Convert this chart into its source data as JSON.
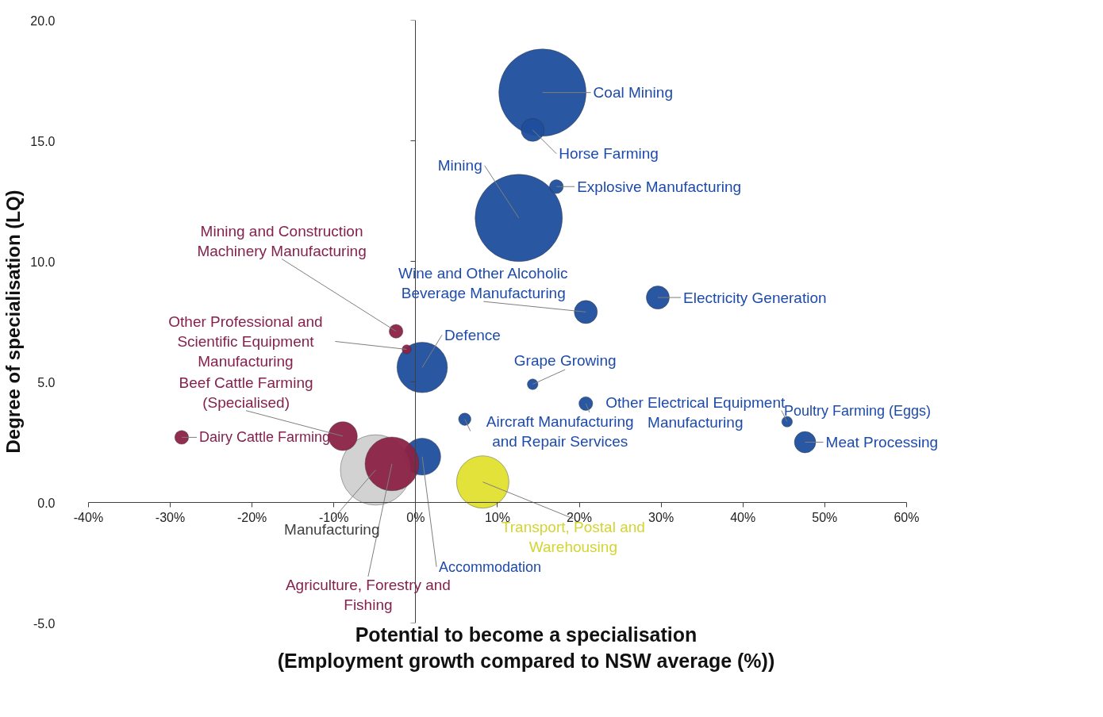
{
  "chart_data": {
    "type": "bubble",
    "xlabel": "Potential to become a specialisation\n(Employment growth compared to NSW average (%))",
    "ylabel": "Degree of specialisation (LQ)",
    "xlim": [
      -40,
      60
    ],
    "xticks": [
      {
        "value": -40,
        "label": "-40%"
      },
      {
        "value": -30,
        "label": "-30%"
      },
      {
        "value": -20,
        "label": "-20%"
      },
      {
        "value": -10,
        "label": "-10%"
      },
      {
        "value": 0,
        "label": "0%"
      },
      {
        "value": 10,
        "label": "10%"
      },
      {
        "value": 20,
        "label": "20%"
      },
      {
        "value": 30,
        "label": "30%"
      },
      {
        "value": 40,
        "label": "40%"
      },
      {
        "value": 50,
        "label": "50%"
      },
      {
        "value": 60,
        "label": "60%"
      }
    ],
    "ylim": [
      -5,
      20
    ],
    "yticks": [
      {
        "value": -5,
        "label": "-5.0"
      },
      {
        "value": 0,
        "label": "0.0"
      },
      {
        "value": 5,
        "label": "5.0"
      },
      {
        "value": 10,
        "label": "10.0"
      },
      {
        "value": 15,
        "label": "15.0"
      },
      {
        "value": 20,
        "label": "20.0"
      }
    ],
    "series": [
      {
        "color": "#1f4e9c",
        "x": [
          15.5,
          14.3,
          12.6,
          17.2,
          20.8,
          29.6,
          0.8,
          14.3,
          20.8,
          6.0,
          45.4,
          47.6,
          0.8
        ],
        "values": [
          17.0,
          15.45,
          11.8,
          13.1,
          7.9,
          8.5,
          5.6,
          4.9,
          4.1,
          3.45,
          3.35,
          2.5,
          1.9
        ],
        "sizes": [
          1,
          0.07,
          1,
          0.025,
          0.07,
          0.07,
          0.335,
          0.015,
          0.025,
          0.02,
          0.015,
          0.06,
          0.18
        ]
      },
      {
        "color": "#e0e030",
        "x": [
          8.2
        ],
        "values": [
          0.85
        ],
        "sizes": [
          0.36
        ]
      },
      {
        "color": "#d0d0d0",
        "x": [
          -4.9
        ],
        "values": [
          1.35
        ],
        "sizes": [
          0.65
        ]
      },
      {
        "color": "#8b2346",
        "x": [
          -2.9,
          -28.6,
          -8.9,
          -2.4,
          -1.1
        ],
        "values": [
          1.6,
          2.7,
          2.75,
          7.1,
          6.35
        ],
        "sizes": [
          0.38,
          0.025,
          0.11,
          0.025,
          0.011
        ]
      }
    ],
    "annotations": [
      {
        "text": "Coal Mining",
        "x": 15.5,
        "y": 17.0
      },
      {
        "text": "Horse Farming",
        "x": 14.3,
        "y": 15.45
      },
      {
        "text": "Mining",
        "x": 12.6,
        "y": 11.8
      },
      {
        "text": "Explosive Manufacturing",
        "x": 17.2,
        "y": 13.1
      },
      {
        "text": "Wine and Other Alcoholic\nBeverage Manufacturing",
        "x": 20.8,
        "y": 7.9
      },
      {
        "text": "Electricity Generation",
        "x": 29.6,
        "y": 8.5
      },
      {
        "text": "Defence",
        "x": 0.8,
        "y": 5.6
      },
      {
        "text": "Grape Growing",
        "x": 14.3,
        "y": 4.9
      },
      {
        "text": "Other Electrical Equipment\nManufacturing",
        "x": 20.8,
        "y": 4.1
      },
      {
        "text": "Aircraft Manufacturing\nand Repair Services",
        "x": 6.0,
        "y": 3.45
      },
      {
        "text": "Poultry Farming (Eggs)",
        "x": 45.4,
        "y": 3.35
      },
      {
        "text": "Meat Processing",
        "x": 47.6,
        "y": 2.5
      },
      {
        "text": "Accommodation",
        "x": 0.8,
        "y": 1.9
      },
      {
        "text": "Transport, Postal and\nWarehousing",
        "x": 8.2,
        "y": 0.85
      },
      {
        "text": "Manufacturing",
        "x": -4.9,
        "y": 1.35
      },
      {
        "text": "Agriculture, Forestry and\nFishing",
        "x": -2.9,
        "y": 1.6
      },
      {
        "text": "Dairy Cattle Farming",
        "x": -28.6,
        "y": 2.7
      },
      {
        "text": "Beef Cattle Farming\n(Specialised)",
        "x": -8.9,
        "y": 2.75
      },
      {
        "text": "Mining and Construction\nMachinery Manufacturing",
        "x": -2.4,
        "y": 7.1
      },
      {
        "text": "Other Professional and\nScientific Equipment\nManufacturing",
        "x": -1.1,
        "y": 6.35
      }
    ]
  }
}
